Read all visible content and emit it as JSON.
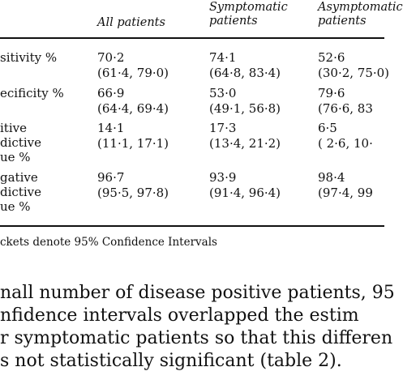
{
  "table": {
    "column_headers": [
      {
        "line1": "All patients",
        "line2": ""
      },
      {
        "line1": "Symptomatic",
        "line2": "patients"
      },
      {
        "line1": "Asymptomatic",
        "line2": "patients"
      }
    ],
    "rows": [
      {
        "label_lines": [
          "sitivity %"
        ],
        "cells": [
          {
            "value": "70·2",
            "ci": "(61·4, 79·0)"
          },
          {
            "value": "74·1",
            "ci": "(64·8, 83·4)"
          },
          {
            "value": "52·6",
            "ci": "(30·2, 75·0)"
          }
        ]
      },
      {
        "label_lines": [
          "ecificity %"
        ],
        "cells": [
          {
            "value": "66·9",
            "ci": "(64·4, 69·4)"
          },
          {
            "value": "53·0",
            "ci": "(49·1, 56·8)"
          },
          {
            "value": "79·6",
            "ci": "(76·6, 83"
          }
        ]
      },
      {
        "label_lines": [
          "itive",
          "dictive",
          "ue %"
        ],
        "cells": [
          {
            "value": "14·1",
            "ci": "(11·1, 17·1)"
          },
          {
            "value": "17·3",
            "ci": "(13·4, 21·2)"
          },
          {
            "value": "6·5",
            "ci": "( 2·6, 10·"
          }
        ]
      },
      {
        "label_lines": [
          "gative",
          "dictive",
          "ue %"
        ],
        "cells": [
          {
            "value": "96·7",
            "ci": "(95·5, 97·8)"
          },
          {
            "value": "93·9",
            "ci": "(91·4, 96·4)"
          },
          {
            "value": "98·4",
            "ci": "(97·4, 99"
          }
        ]
      }
    ],
    "footnote": "ckets denote 95% Confidence Intervals"
  },
  "body_text": [
    "nall number of disease positive patients, 95",
    "nfidence  intervals  overlapped  the  estim",
    "r symptomatic patients so that this differen",
    "s not statistically significant (table 2)."
  ]
}
